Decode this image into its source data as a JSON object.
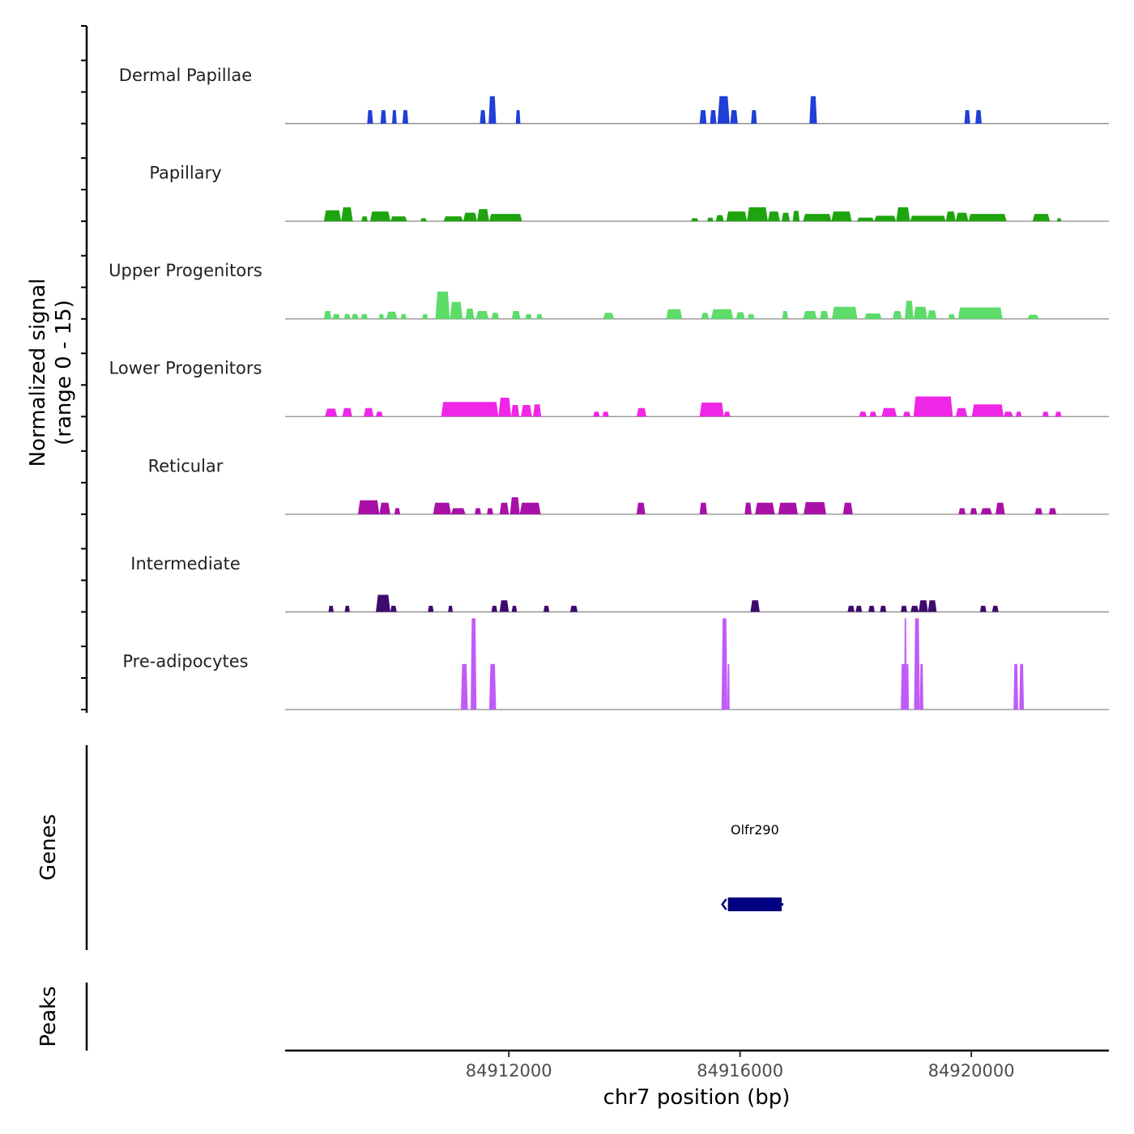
{
  "chart_data": {
    "type": "area",
    "title": "",
    "xlabel": "chr7 position (bp)",
    "ylabel": "Normalized signal\n(range 0 - 15)",
    "ylabel_lines": [
      "Normalized signal",
      "(range 0 - 15)"
    ],
    "xlim": [
      84908130,
      84922380
    ],
    "ylim": [
      0,
      15
    ],
    "x_ticks": [
      84912000,
      84916000,
      84920000
    ],
    "x_tick_labels": [
      "84912000",
      "84916000",
      "84920000"
    ],
    "grid": false,
    "legend": "none",
    "peak_format": "[start_bp, end_bp, signal]",
    "series": [
      {
        "name": "Dermal Papillae",
        "color": "#1f3fd6",
        "peaks": [
          [
            84909550,
            84909650,
            2.2
          ],
          [
            84909780,
            84909880,
            2.2
          ],
          [
            84909980,
            84910060,
            2.2
          ],
          [
            84910160,
            84910260,
            2.2
          ],
          [
            84911500,
            84911600,
            2.2
          ],
          [
            84911650,
            84911780,
            4.5
          ],
          [
            84912120,
            84912200,
            2.2
          ],
          [
            84915300,
            84915420,
            2.2
          ],
          [
            84915480,
            84915590,
            2.2
          ],
          [
            84915610,
            84915820,
            4.5
          ],
          [
            84915830,
            84915960,
            2.2
          ],
          [
            84916190,
            84916290,
            2.2
          ],
          [
            84917200,
            84917330,
            4.5
          ],
          [
            84919880,
            84919980,
            2.2
          ],
          [
            84920070,
            84920180,
            2.2
          ]
        ]
      },
      {
        "name": "Papillary",
        "color": "#1ea40e",
        "peaks": [
          [
            84908800,
            84909100,
            1.8
          ],
          [
            84909100,
            84909300,
            2.3
          ],
          [
            84909450,
            84909560,
            0.8
          ],
          [
            84909600,
            84909950,
            1.6
          ],
          [
            84909950,
            84910240,
            0.8
          ],
          [
            84910470,
            84910580,
            0.5
          ],
          [
            84910870,
            84911210,
            0.8
          ],
          [
            84911210,
            84911450,
            1.4
          ],
          [
            84911450,
            84911660,
            2.0
          ],
          [
            84911660,
            84912230,
            1.2
          ],
          [
            84915150,
            84915280,
            0.5
          ],
          [
            84915430,
            84915540,
            0.6
          ],
          [
            84915580,
            84915720,
            1.0
          ],
          [
            84915760,
            84916120,
            1.6
          ],
          [
            84916120,
            84916480,
            2.3
          ],
          [
            84916480,
            84916690,
            1.6
          ],
          [
            84916720,
            84916860,
            1.4
          ],
          [
            84916910,
            84917030,
            1.7
          ],
          [
            84917090,
            84917580,
            1.2
          ],
          [
            84917580,
            84917930,
            1.6
          ],
          [
            84918020,
            84918320,
            0.6
          ],
          [
            84918320,
            84918700,
            0.9
          ],
          [
            84918700,
            84918940,
            2.3
          ],
          [
            84918940,
            84919560,
            0.9
          ],
          [
            84919560,
            84919730,
            1.6
          ],
          [
            84919730,
            84919950,
            1.4
          ],
          [
            84919950,
            84920610,
            1.2
          ],
          [
            84921060,
            84921360,
            1.2
          ],
          [
            84921480,
            84921560,
            0.5
          ]
        ]
      },
      {
        "name": "Upper Progenitors",
        "color": "#5ddc6a",
        "peaks": [
          [
            84908800,
            84908930,
            1.3
          ],
          [
            84908950,
            84909080,
            0.8
          ],
          [
            84909150,
            84909260,
            0.8
          ],
          [
            84909280,
            84909400,
            0.8
          ],
          [
            84909440,
            84909560,
            0.8
          ],
          [
            84909750,
            84909840,
            0.8
          ],
          [
            84909880,
            84910070,
            1.2
          ],
          [
            84910130,
            84910230,
            0.8
          ],
          [
            84910500,
            84910600,
            0.8
          ],
          [
            84910730,
            84910980,
            4.5
          ],
          [
            84910980,
            84911200,
            2.8
          ],
          [
            84911250,
            84911400,
            1.7
          ],
          [
            84911430,
            84911650,
            1.3
          ],
          [
            84911700,
            84911830,
            1.0
          ],
          [
            84912050,
            84912200,
            1.3
          ],
          [
            84912280,
            84912400,
            0.8
          ],
          [
            84912480,
            84912580,
            0.8
          ],
          [
            84913630,
            84913820,
            1.0
          ],
          [
            84914720,
            84915000,
            1.6
          ],
          [
            84915330,
            84915460,
            1.0
          ],
          [
            84915500,
            84915880,
            1.6
          ],
          [
            84915930,
            84916080,
            1.1
          ],
          [
            84916130,
            84916250,
            0.8
          ],
          [
            84916730,
            84916830,
            1.3
          ],
          [
            84917090,
            84917330,
            1.3
          ],
          [
            84917380,
            84917530,
            1.3
          ],
          [
            84917590,
            84918030,
            2.0
          ],
          [
            84918150,
            84918450,
            0.9
          ],
          [
            84918640,
            84918800,
            1.3
          ],
          [
            84918850,
            84919000,
            3.0
          ],
          [
            84919000,
            84919240,
            2.0
          ],
          [
            84919240,
            84919400,
            1.4
          ],
          [
            84919600,
            84919720,
            0.8
          ],
          [
            84919770,
            84920540,
            1.9
          ],
          [
            84920970,
            84921170,
            0.7
          ]
        ]
      },
      {
        "name": "Lower Progenitors",
        "color": "#f026e6",
        "peaks": [
          [
            84908820,
            84909030,
            1.3
          ],
          [
            84909120,
            84909290,
            1.4
          ],
          [
            84909490,
            84909660,
            1.4
          ],
          [
            84909700,
            84909820,
            0.8
          ],
          [
            84910830,
            84911820,
            2.4
          ],
          [
            84911820,
            84912040,
            3.1
          ],
          [
            84912040,
            84912180,
            1.9
          ],
          [
            84912210,
            84912400,
            1.9
          ],
          [
            84912420,
            84912560,
            2.0
          ],
          [
            84913460,
            84913570,
            0.8
          ],
          [
            84913620,
            84913730,
            0.8
          ],
          [
            84914210,
            84914380,
            1.4
          ],
          [
            84915300,
            84915720,
            2.3
          ],
          [
            84915720,
            84915830,
            0.8
          ],
          [
            84918060,
            84918190,
            0.8
          ],
          [
            84918240,
            84918360,
            0.8
          ],
          [
            84918450,
            84918710,
            1.4
          ],
          [
            84918820,
            84918950,
            0.8
          ],
          [
            84919000,
            84919680,
            3.3
          ],
          [
            84919730,
            84919930,
            1.4
          ],
          [
            84920010,
            84920560,
            2.0
          ],
          [
            84920560,
            84920720,
            0.8
          ],
          [
            84920770,
            84920870,
            0.8
          ],
          [
            84921230,
            84921340,
            0.8
          ],
          [
            84921450,
            84921560,
            0.8
          ]
        ]
      },
      {
        "name": "Reticular",
        "color": "#a810a8",
        "peaks": [
          [
            84909390,
            84909760,
            2.3
          ],
          [
            84909760,
            84909950,
            1.9
          ],
          [
            84910020,
            84910120,
            1.0
          ],
          [
            84910690,
            84911000,
            1.9
          ],
          [
            84911000,
            84911250,
            1.0
          ],
          [
            84911410,
            84911520,
            1.0
          ],
          [
            84911620,
            84911730,
            1.0
          ],
          [
            84911840,
            84912000,
            1.9
          ],
          [
            84912020,
            84912190,
            2.8
          ],
          [
            84912190,
            84912550,
            1.9
          ],
          [
            84914210,
            84914360,
            1.9
          ],
          [
            84915300,
            84915430,
            1.9
          ],
          [
            84916080,
            84916200,
            1.9
          ],
          [
            84916260,
            84916600,
            1.9
          ],
          [
            84916660,
            84917000,
            1.9
          ],
          [
            84917100,
            84917490,
            2.0
          ],
          [
            84917780,
            84917950,
            1.9
          ],
          [
            84919780,
            84919900,
            1.0
          ],
          [
            84919980,
            84920100,
            1.0
          ],
          [
            84920160,
            84920360,
            1.0
          ],
          [
            84920420,
            84920580,
            1.9
          ],
          [
            84921100,
            84921230,
            1.0
          ],
          [
            84921340,
            84921470,
            1.0
          ]
        ]
      },
      {
        "name": "Intermediate",
        "color": "#3e0a6e",
        "peaks": [
          [
            84908880,
            84908970,
            1.0
          ],
          [
            84909160,
            84909250,
            1.0
          ],
          [
            84909700,
            84909950,
            2.8
          ],
          [
            84909950,
            84910060,
            1.0
          ],
          [
            84910600,
            84910700,
            1.0
          ],
          [
            84910950,
            84911030,
            1.0
          ],
          [
            84911700,
            84911800,
            1.0
          ],
          [
            84911840,
            84912000,
            1.9
          ],
          [
            84912050,
            84912140,
            1.0
          ],
          [
            84912600,
            84912700,
            1.0
          ],
          [
            84913060,
            84913190,
            1.0
          ],
          [
            84916180,
            84916340,
            1.9
          ],
          [
            84917860,
            84917980,
            1.0
          ],
          [
            84918000,
            84918110,
            1.0
          ],
          [
            84918220,
            84918330,
            1.0
          ],
          [
            84918420,
            84918530,
            1.0
          ],
          [
            84918780,
            84918890,
            1.0
          ],
          [
            84918950,
            84919090,
            1.0
          ],
          [
            84919090,
            84919250,
            1.9
          ],
          [
            84919250,
            84919400,
            1.9
          ],
          [
            84920150,
            84920260,
            1.0
          ],
          [
            84920360,
            84920470,
            1.0
          ]
        ]
      },
      {
        "name": "Pre-adipocytes",
        "color": "#c05bf7",
        "peaks": [
          [
            84911170,
            84911290,
            7.5
          ],
          [
            84911340,
            84911440,
            15.0
          ],
          [
            84911660,
            84911780,
            7.5
          ],
          [
            84915680,
            84915780,
            15.0
          ],
          [
            84915780,
            84915820,
            7.5
          ],
          [
            84918780,
            84918870,
            7.5
          ],
          [
            84918840,
            84918880,
            15.0
          ],
          [
            84918870,
            84918920,
            7.5
          ],
          [
            84919010,
            84919110,
            15.0
          ],
          [
            84919110,
            84919170,
            7.5
          ],
          [
            84920730,
            84920810,
            7.5
          ],
          [
            84920830,
            84920910,
            7.5
          ]
        ]
      }
    ],
    "genes": {
      "track_label": "Genes",
      "items": [
        {
          "name": "Olfr290",
          "start": 84915790,
          "end": 84916720,
          "strand": "-",
          "color": "#000080"
        }
      ]
    },
    "peaks_track": {
      "track_label": "Peaks",
      "items": []
    }
  }
}
